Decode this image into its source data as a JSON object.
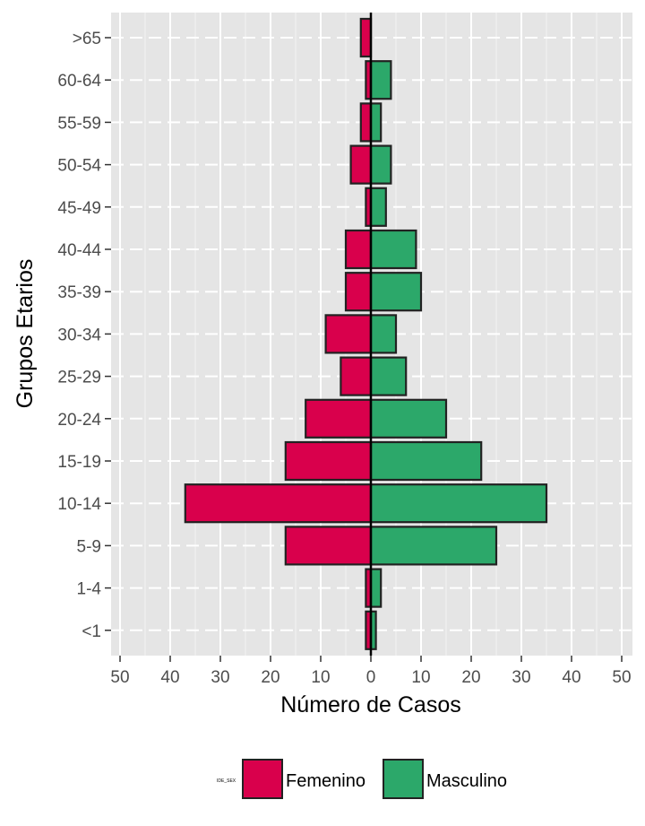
{
  "chart_data": {
    "type": "bar",
    "orientation": "horizontal",
    "subtype": "population-pyramid",
    "title": "",
    "xlabel": "Número de Casos",
    "ylabel": "Grupos Etarios",
    "categories": [
      ">65",
      "60-64",
      "55-59",
      "50-54",
      "45-49",
      "40-44",
      "35-39",
      "30-34",
      "25-29",
      "20-24",
      "15-19",
      "10-14",
      "5-9",
      "1-4",
      "<1"
    ],
    "series": [
      {
        "name": "Femenino",
        "color": "#d9004c",
        "direction": "left",
        "values": [
          2,
          1,
          2,
          4,
          1,
          5,
          5,
          9,
          6,
          13,
          17,
          37,
          17,
          1,
          1
        ]
      },
      {
        "name": "Masculino",
        "color": "#2ca86a",
        "direction": "right",
        "values": [
          0,
          4,
          2,
          4,
          3,
          9,
          10,
          5,
          7,
          15,
          22,
          35,
          25,
          2,
          1
        ]
      }
    ],
    "xlim": [
      -50,
      50
    ],
    "xticks": [
      -50,
      -40,
      -30,
      -20,
      -10,
      0,
      10,
      20,
      30,
      40,
      50
    ],
    "xtick_labels": [
      "50",
      "40",
      "30",
      "20",
      "10",
      "0",
      "10",
      "20",
      "30",
      "40",
      "50"
    ],
    "grid": true,
    "legend": {
      "title": "IDE_SEX",
      "position": "bottom",
      "entries": [
        "Femenino",
        "Masculino"
      ]
    }
  }
}
